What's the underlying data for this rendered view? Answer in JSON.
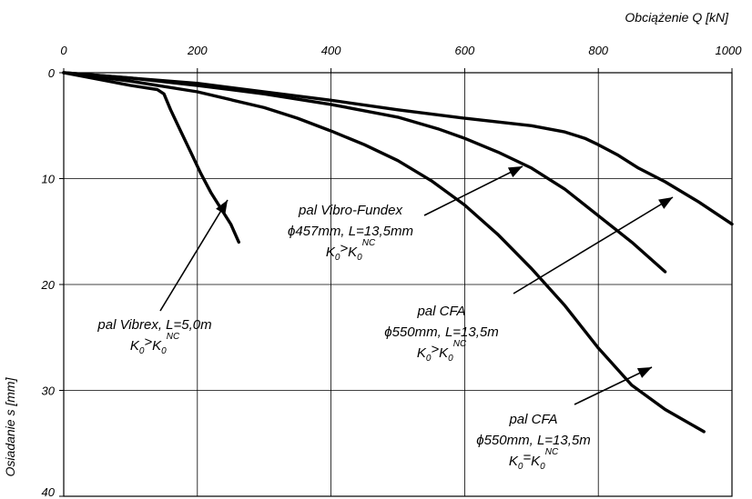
{
  "chart_data": {
    "type": "line",
    "xlabel": "Obciążenie Q [kN]",
    "ylabel": "Osiadanie s [mm]",
    "xlim": [
      0,
      1000
    ],
    "ylim": [
      0,
      40
    ],
    "y_inverted": true,
    "x_axis_position": "top",
    "grid": true,
    "x_ticks": [
      "0",
      "200",
      "400",
      "600",
      "800",
      "1000"
    ],
    "y_ticks": [
      "0",
      "10",
      "20",
      "30",
      "40"
    ],
    "series": [
      {
        "x": [
          0,
          50,
          100,
          140,
          150,
          160,
          175,
          190,
          205,
          220,
          235,
          250,
          262
        ],
        "y": [
          0,
          0.6,
          1.2,
          1.6,
          2.0,
          3.5,
          5.5,
          7.5,
          9.5,
          11.3,
          12.8,
          14.3,
          16.0
        ]
      },
      {
        "x": [
          0,
          100,
          200,
          300,
          400,
          500,
          560,
          600,
          650,
          700,
          750,
          800,
          850,
          900
        ],
        "y": [
          0,
          0.5,
          1.2,
          2.0,
          3.0,
          4.2,
          5.3,
          6.2,
          7.5,
          9.0,
          11.0,
          13.5,
          16.0,
          18.8
        ]
      },
      {
        "x": [
          0,
          100,
          200,
          300,
          350,
          400,
          450,
          500,
          550,
          600,
          650,
          700,
          750,
          800,
          850,
          900,
          958
        ],
        "y": [
          0,
          0.8,
          1.8,
          3.3,
          4.3,
          5.5,
          6.8,
          8.3,
          10.2,
          12.5,
          15.3,
          18.5,
          22.0,
          26.0,
          29.5,
          31.8,
          33.9
        ]
      },
      {
        "x": [
          0,
          200,
          400,
          500,
          600,
          700,
          750,
          780,
          800,
          830,
          860,
          900,
          950,
          1000
        ],
        "y": [
          0,
          1.0,
          2.6,
          3.5,
          4.3,
          5.0,
          5.6,
          6.2,
          6.8,
          7.8,
          9.0,
          10.3,
          12.2,
          14.3
        ]
      }
    ],
    "annotations": [
      {
        "lines": [
          "pal Vibrex, L=5,0m"
        ],
        "formula": {
          "k": "K",
          "sub": "0",
          "rel": ">",
          "k2": "K",
          "sub2": "0",
          "sup2": "NC"
        }
      },
      {
        "lines": [
          "pal Vibro-Fundex",
          "ϕ457mm, L=13,5mm"
        ],
        "formula": {
          "k": "K",
          "sub": "0",
          "rel": ">",
          "k2": "K",
          "sub2": "0",
          "sup2": "NC"
        }
      },
      {
        "lines": [
          "pal CFA",
          "ϕ550mm, L=13,5m"
        ],
        "formula": {
          "k": "K",
          "sub": "0",
          "rel": ">",
          "k2": "K",
          "sub2": "0",
          "sup2": "NC"
        }
      },
      {
        "lines": [
          "pal CFA",
          "ϕ550mm, L=13,5m"
        ],
        "formula": {
          "k": "K",
          "sub": "0",
          "rel": "=",
          "k2": "K",
          "sub2": "0",
          "sup2": "NC"
        }
      }
    ]
  }
}
